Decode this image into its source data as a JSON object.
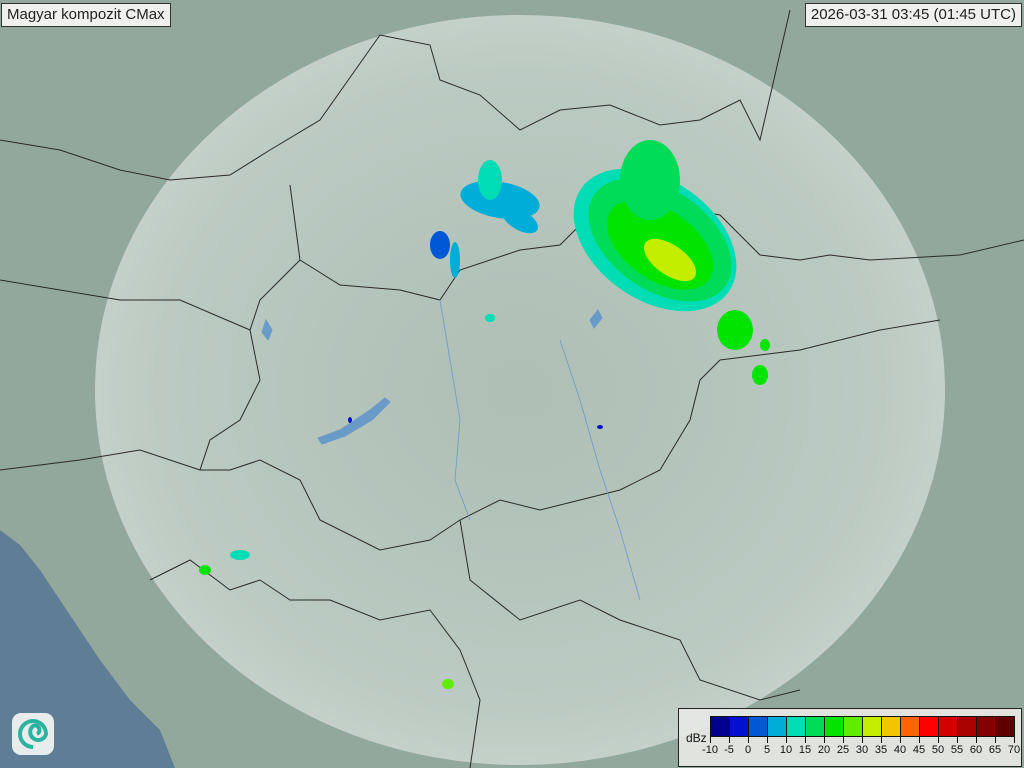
{
  "header": {
    "title": "Magyar kompozit  CMax",
    "timestamp": "2026-03-31 03:45 (01:45 UTC)"
  },
  "legend": {
    "unit": "dBz",
    "ticks": [
      "-10",
      "-5",
      "0",
      "5",
      "10",
      "15",
      "20",
      "25",
      "30",
      "35",
      "40",
      "45",
      "50",
      "55",
      "60",
      "65",
      "70"
    ],
    "colors": [
      "#00008f",
      "#0010d0",
      "#0058d4",
      "#00acd8",
      "#00dcb4",
      "#00dc58",
      "#00e400",
      "#60ec00",
      "#c4ee00",
      "#f4c400",
      "#ff6400",
      "#ff0000",
      "#d40000",
      "#aa0000",
      "#820000",
      "#600000"
    ]
  },
  "map": {
    "land_color": "#9aaea4",
    "coverage_color": "#c9d6cf",
    "sea_color": "#5f7e96",
    "border_color": "#2a2a2a",
    "water_color": "#6a9ac8"
  },
  "logo": {
    "icon": "swirl-logo-icon"
  }
}
